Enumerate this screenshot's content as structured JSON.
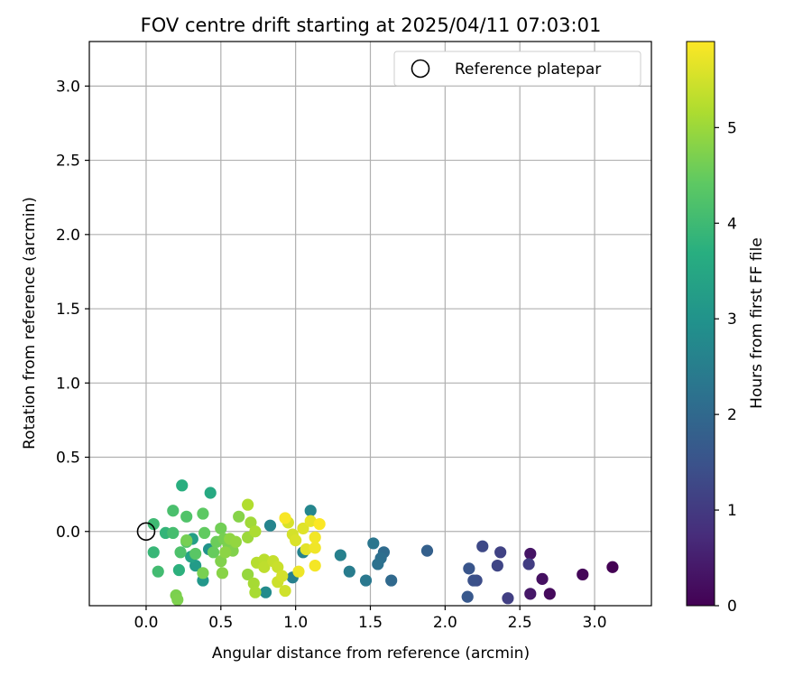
{
  "chart_data": {
    "type": "scatter",
    "title": "FOV centre drift starting at 2025/04/11 07:03:01",
    "xlabel": "Angular distance from reference (arcmin)",
    "ylabel": "Rotation from reference (arcmin)",
    "xlim": [
      -0.38,
      3.38
    ],
    "ylim": [
      -0.5,
      3.3
    ],
    "xticks": [
      "0.0",
      "0.5",
      "1.0",
      "1.5",
      "2.0",
      "2.5",
      "3.0"
    ],
    "yticks": [
      "0.0",
      "0.5",
      "1.0",
      "1.5",
      "2.0",
      "2.5",
      "3.0"
    ],
    "grid": true,
    "legend": {
      "position": "top-right",
      "label": "Reference platepar"
    },
    "reference_point": {
      "x": 0.0,
      "y": 0.0
    },
    "colorbar": {
      "label": "Hours from first FF file",
      "range": [
        0,
        5.9
      ],
      "ticks": [
        "0",
        "1",
        "2",
        "3",
        "4",
        "5"
      ],
      "colormap": "viridis"
    },
    "points": [
      {
        "x": 3.12,
        "y": -0.24,
        "c": 0.0
      },
      {
        "x": 2.92,
        "y": -0.29,
        "c": 0.08
      },
      {
        "x": 2.7,
        "y": -0.42,
        "c": 0.15
      },
      {
        "x": 2.65,
        "y": -0.32,
        "c": 0.25
      },
      {
        "x": 2.57,
        "y": -0.15,
        "c": 0.32
      },
      {
        "x": 2.57,
        "y": -0.42,
        "c": 0.38
      },
      {
        "x": 2.56,
        "y": -0.22,
        "c": 1.05
      },
      {
        "x": 2.42,
        "y": -0.45,
        "c": 1.1
      },
      {
        "x": 2.37,
        "y": -0.14,
        "c": 1.15
      },
      {
        "x": 2.35,
        "y": -0.23,
        "c": 1.22
      },
      {
        "x": 2.25,
        "y": -0.1,
        "c": 1.3
      },
      {
        "x": 2.21,
        "y": -0.33,
        "c": 1.38
      },
      {
        "x": 2.19,
        "y": -0.33,
        "c": 1.45
      },
      {
        "x": 2.16,
        "y": -0.25,
        "c": 1.55
      },
      {
        "x": 2.15,
        "y": -0.44,
        "c": 1.62
      },
      {
        "x": 1.88,
        "y": -0.13,
        "c": 1.8
      },
      {
        "x": 1.64,
        "y": -0.33,
        "c": 2.0
      },
      {
        "x": 1.59,
        "y": -0.14,
        "c": 2.05
      },
      {
        "x": 1.57,
        "y": -0.18,
        "c": 2.15
      },
      {
        "x": 1.55,
        "y": -0.22,
        "c": 2.2
      },
      {
        "x": 1.52,
        "y": -0.08,
        "c": 2.3
      },
      {
        "x": 1.47,
        "y": -0.33,
        "c": 2.35
      },
      {
        "x": 1.36,
        "y": -0.27,
        "c": 2.45
      },
      {
        "x": 1.3,
        "y": -0.16,
        "c": 2.55
      },
      {
        "x": 1.1,
        "y": 0.14,
        "c": 2.7
      },
      {
        "x": 1.05,
        "y": -0.14,
        "c": 2.6
      },
      {
        "x": 0.98,
        "y": -0.31,
        "c": 2.55
      },
      {
        "x": 0.83,
        "y": 0.04,
        "c": 2.65
      },
      {
        "x": 0.8,
        "y": -0.41,
        "c": 2.8
      },
      {
        "x": 0.42,
        "y": -0.12,
        "c": 3.0
      },
      {
        "x": 0.38,
        "y": -0.33,
        "c": 3.1
      },
      {
        "x": 0.33,
        "y": -0.23,
        "c": 3.2
      },
      {
        "x": 0.31,
        "y": -0.05,
        "c": 3.3
      },
      {
        "x": 0.3,
        "y": -0.17,
        "c": 3.4
      },
      {
        "x": 0.43,
        "y": 0.26,
        "c": 3.55
      },
      {
        "x": 0.24,
        "y": 0.31,
        "c": 3.7
      },
      {
        "x": 0.22,
        "y": -0.26,
        "c": 3.75
      },
      {
        "x": 0.13,
        "y": -0.01,
        "c": 3.85
      },
      {
        "x": 0.05,
        "y": -0.14,
        "c": 3.9
      },
      {
        "x": 0.05,
        "y": 0.05,
        "c": 4.0
      },
      {
        "x": 0.08,
        "y": -0.27,
        "c": 4.05
      },
      {
        "x": 0.18,
        "y": -0.01,
        "c": 4.1
      },
      {
        "x": 0.18,
        "y": 0.14,
        "c": 4.15
      },
      {
        "x": 0.23,
        "y": -0.14,
        "c": 4.2
      },
      {
        "x": 0.27,
        "y": 0.1,
        "c": 4.25
      },
      {
        "x": 0.27,
        "y": -0.07,
        "c": 4.3
      },
      {
        "x": 0.33,
        "y": -0.15,
        "c": 4.35
      },
      {
        "x": 0.38,
        "y": 0.12,
        "c": 4.4
      },
      {
        "x": 0.39,
        "y": -0.01,
        "c": 4.45
      },
      {
        "x": 0.45,
        "y": -0.14,
        "c": 4.5
      },
      {
        "x": 0.47,
        "y": -0.07,
        "c": 4.55
      },
      {
        "x": 0.5,
        "y": 0.02,
        "c": 4.6
      },
      {
        "x": 0.52,
        "y": -0.05,
        "c": 4.65
      },
      {
        "x": 0.55,
        "y": -0.09,
        "c": 4.7
      },
      {
        "x": 0.58,
        "y": -0.13,
        "c": 4.75
      },
      {
        "x": 0.62,
        "y": 0.1,
        "c": 4.8
      },
      {
        "x": 0.2,
        "y": -0.43,
        "c": 4.7
      },
      {
        "x": 0.21,
        "y": -0.46,
        "c": 4.72
      },
      {
        "x": 0.27,
        "y": -0.06,
        "c": 4.65
      },
      {
        "x": 0.38,
        "y": -0.28,
        "c": 4.68
      },
      {
        "x": 0.5,
        "y": -0.2,
        "c": 4.75
      },
      {
        "x": 0.51,
        "y": -0.28,
        "c": 4.82
      },
      {
        "x": 0.53,
        "y": -0.14,
        "c": 4.85
      },
      {
        "x": 0.56,
        "y": -0.05,
        "c": 4.88
      },
      {
        "x": 0.6,
        "y": -0.07,
        "c": 4.92
      },
      {
        "x": 0.68,
        "y": -0.29,
        "c": 4.95
      },
      {
        "x": 0.68,
        "y": -0.04,
        "c": 5.0
      },
      {
        "x": 0.7,
        "y": 0.06,
        "c": 5.05
      },
      {
        "x": 0.72,
        "y": -0.35,
        "c": 5.1
      },
      {
        "x": 0.73,
        "y": -0.41,
        "c": 5.12
      },
      {
        "x": 0.73,
        "y": 0.0,
        "c": 5.15
      },
      {
        "x": 0.68,
        "y": 0.18,
        "c": 5.2
      },
      {
        "x": 0.74,
        "y": -0.21,
        "c": 5.25
      },
      {
        "x": 0.79,
        "y": -0.19,
        "c": 5.28
      },
      {
        "x": 0.79,
        "y": -0.24,
        "c": 5.32
      },
      {
        "x": 0.85,
        "y": -0.2,
        "c": 5.38
      },
      {
        "x": 0.88,
        "y": -0.24,
        "c": 5.42
      },
      {
        "x": 0.88,
        "y": -0.34,
        "c": 5.45
      },
      {
        "x": 0.91,
        "y": -0.3,
        "c": 5.5
      },
      {
        "x": 0.93,
        "y": -0.4,
        "c": 5.48
      },
      {
        "x": 0.95,
        "y": 0.06,
        "c": 5.55
      },
      {
        "x": 0.98,
        "y": -0.02,
        "c": 5.52
      },
      {
        "x": 1.0,
        "y": -0.06,
        "c": 5.58
      },
      {
        "x": 1.05,
        "y": 0.02,
        "c": 5.62
      },
      {
        "x": 1.07,
        "y": -0.12,
        "c": 5.66
      },
      {
        "x": 1.1,
        "y": 0.07,
        "c": 5.7
      },
      {
        "x": 1.02,
        "y": -0.27,
        "c": 5.75
      },
      {
        "x": 1.13,
        "y": -0.11,
        "c": 5.78
      },
      {
        "x": 1.13,
        "y": -0.04,
        "c": 5.8
      },
      {
        "x": 1.13,
        "y": -0.23,
        "c": 5.82
      },
      {
        "x": 1.16,
        "y": 0.05,
        "c": 5.88
      },
      {
        "x": 0.93,
        "y": 0.09,
        "c": 5.85
      }
    ]
  }
}
